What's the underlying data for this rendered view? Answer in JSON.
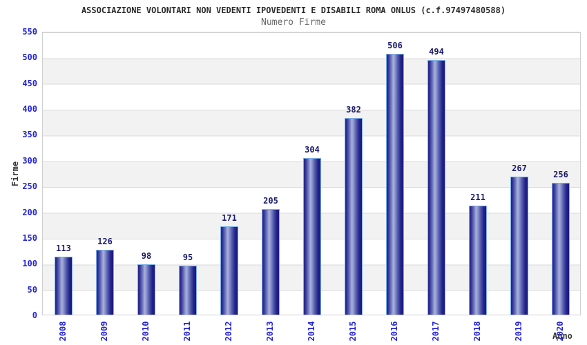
{
  "header": {
    "title": "ASSOCIAZIONE VOLONTARI NON VEDENTI IPOVEDENTI E DISABILI ROMA ONLUS (c.f.97497480588)",
    "subtitle": "Numero Firme"
  },
  "chart_data": {
    "type": "bar",
    "title": "Numero Firme",
    "categories": [
      "2008",
      "2009",
      "2010",
      "2011",
      "2012",
      "2013",
      "2014",
      "2015",
      "2016",
      "2017",
      "2018",
      "2019",
      "2020"
    ],
    "values": [
      113,
      126,
      98,
      95,
      171,
      205,
      304,
      382,
      506,
      494,
      211,
      267,
      256
    ],
    "xlabel": "Anno",
    "ylabel": "Firme",
    "ylim": [
      0,
      550
    ],
    "ytick_step": 50,
    "grid": "horizontal-bands-alternating",
    "legend_position": "none",
    "colors": {
      "bar_dark": "#23238c",
      "bar_highlight": "#a9b1dd",
      "bar_border": "#7db0ea",
      "axis_tick_label": "#2424d8",
      "value_label": "#1a1a6e",
      "band_alt": "#f2f2f2",
      "gridline": "#d9d9d9",
      "title": "#2b2b2b",
      "subtitle": "#666666",
      "axis_title": "#333333"
    }
  }
}
